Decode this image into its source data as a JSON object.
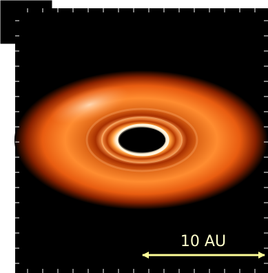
{
  "scale_bar": {
    "label": "10 AU"
  }
}
